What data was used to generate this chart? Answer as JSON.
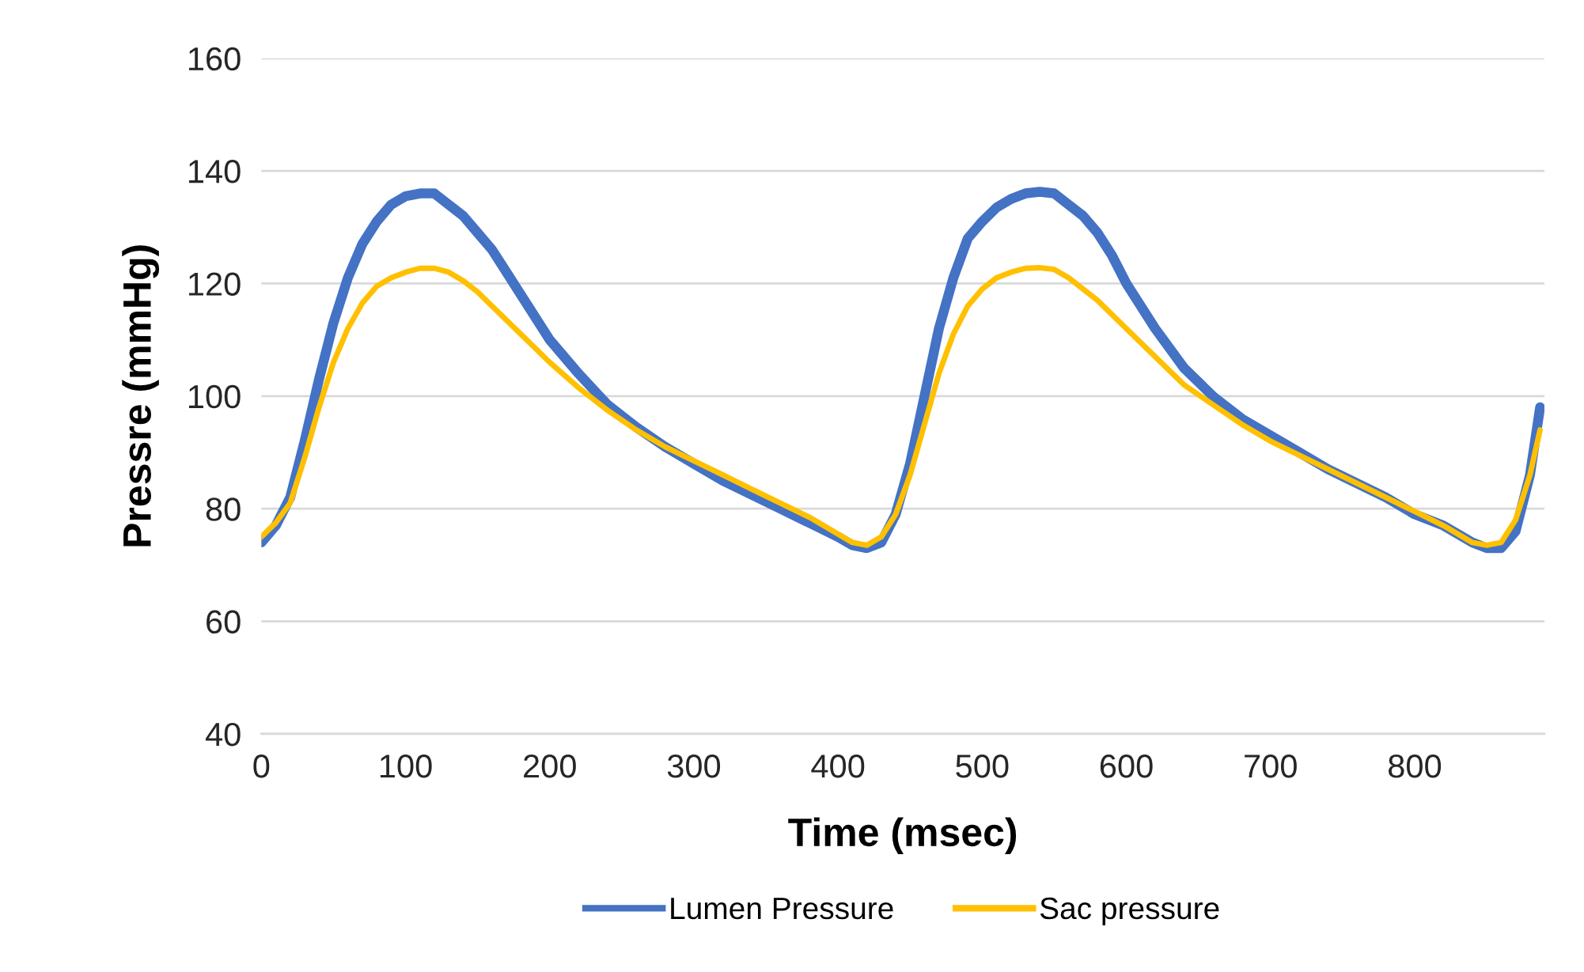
{
  "chart_data": {
    "type": "line",
    "xlabel": "Time (msec)",
    "ylabel": "Pressre (mmHg)",
    "xlim": [
      0,
      890
    ],
    "xticks": [
      0,
      100,
      200,
      300,
      400,
      500,
      600,
      700,
      800
    ],
    "ylim": [
      40,
      160
    ],
    "yticks": [
      40,
      60,
      80,
      100,
      120,
      140,
      160
    ],
    "grid": "y",
    "legend": "bottom",
    "marker": "none",
    "line_style": "solid",
    "series": [
      {
        "name": "Lumen Pressure",
        "color": "#4472c4",
        "x": [
          0,
          10,
          20,
          30,
          40,
          50,
          60,
          70,
          80,
          90,
          100,
          110,
          120,
          130,
          140,
          150,
          160,
          170,
          180,
          190,
          200,
          220,
          240,
          260,
          280,
          300,
          320,
          340,
          360,
          380,
          400,
          410,
          420,
          430,
          440,
          450,
          460,
          470,
          480,
          490,
          500,
          510,
          520,
          530,
          540,
          550,
          560,
          570,
          580,
          590,
          600,
          610,
          620,
          640,
          660,
          680,
          700,
          720,
          740,
          760,
          780,
          800,
          820,
          840,
          850,
          860,
          870,
          880,
          887
        ],
        "values": [
          74,
          77,
          82,
          92,
          103,
          113,
          121,
          127,
          131,
          134,
          135.5,
          136,
          136,
          134,
          132,
          129,
          126,
          122,
          118,
          114,
          110,
          104,
          98.5,
          94.5,
          91,
          88,
          85,
          82.5,
          80,
          77.5,
          75,
          73.5,
          73,
          74,
          79,
          88,
          100,
          112,
          121,
          128,
          131,
          133.5,
          135,
          136,
          136.3,
          136,
          134,
          132,
          129,
          125,
          120,
          116,
          112,
          105,
          100,
          96,
          93,
          90,
          87,
          84.5,
          82,
          79,
          77,
          74,
          73,
          73,
          76,
          86,
          98
        ]
      },
      {
        "name": "Sac pressure",
        "color": "#ffc000",
        "x": [
          0,
          10,
          20,
          30,
          40,
          50,
          60,
          70,
          80,
          90,
          100,
          110,
          120,
          130,
          140,
          150,
          160,
          170,
          180,
          200,
          220,
          240,
          260,
          280,
          300,
          320,
          340,
          360,
          380,
          400,
          410,
          420,
          430,
          440,
          450,
          460,
          470,
          480,
          490,
          500,
          510,
          520,
          530,
          540,
          550,
          560,
          570,
          580,
          600,
          620,
          640,
          660,
          680,
          700,
          720,
          740,
          760,
          780,
          800,
          820,
          840,
          850,
          860,
          870,
          880,
          887
        ],
        "values": [
          75,
          77.5,
          81,
          89,
          98,
          106,
          112,
          116.5,
          119.5,
          121,
          122,
          122.7,
          122.7,
          122,
          120.5,
          118.5,
          116,
          113.5,
          111,
          106,
          101.5,
          97.5,
          94,
          91,
          88.5,
          86,
          83.5,
          81,
          78.5,
          75.5,
          74,
          73.5,
          75,
          79,
          86,
          95,
          104,
          111,
          116,
          119,
          121,
          122,
          122.7,
          122.8,
          122.5,
          121,
          119,
          117,
          112,
          107,
          102,
          98.5,
          95,
          92,
          89.5,
          87,
          84.5,
          82,
          79.5,
          77,
          74,
          73.5,
          74,
          78,
          86,
          94
        ]
      }
    ]
  }
}
